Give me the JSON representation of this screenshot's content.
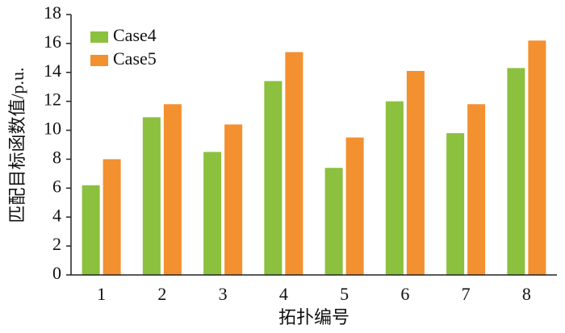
{
  "chart_data": {
    "type": "bar",
    "x_label": "拓扑编号",
    "y_label": "匹配目标函数值/p.u.",
    "categories": [
      "1",
      "2",
      "3",
      "4",
      "5",
      "6",
      "7",
      "8"
    ],
    "series": [
      {
        "name": "Case4",
        "color": "#8cc03f",
        "values": [
          6.2,
          10.9,
          8.5,
          13.4,
          7.4,
          12.0,
          9.8,
          14.3
        ]
      },
      {
        "name": "Case5",
        "color": "#f3902f",
        "values": [
          8.0,
          11.8,
          10.4,
          15.4,
          9.5,
          14.1,
          11.8,
          16.2
        ]
      }
    ],
    "ylim": [
      0,
      18
    ],
    "yticks": [
      0,
      2,
      4,
      6,
      8,
      10,
      12,
      14,
      16,
      18
    ],
    "legend": "upper-left"
  }
}
